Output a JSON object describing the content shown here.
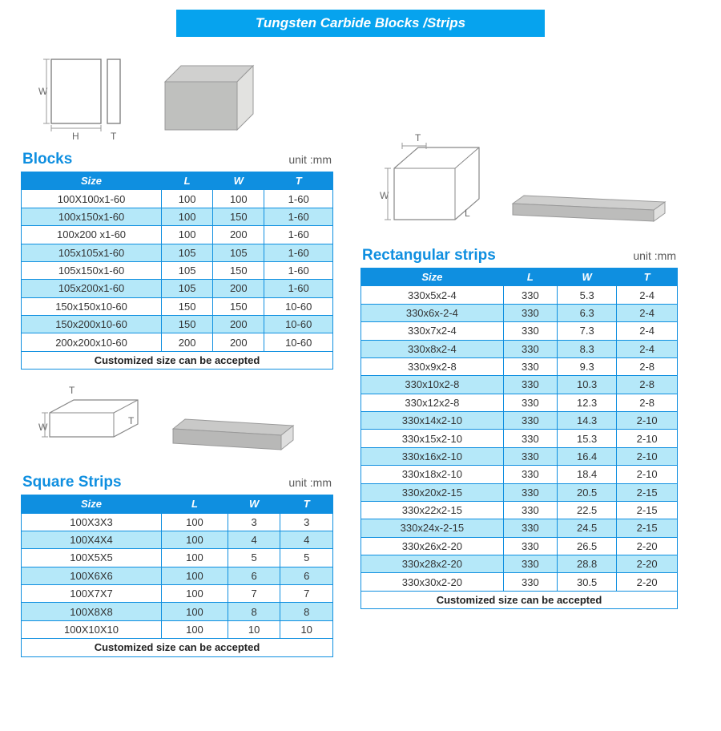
{
  "colors": {
    "brand_blue": "#06a3ee",
    "header_blue": "#0f8fe0",
    "row_alt": "#b5e8f9",
    "border": "#0f8fe0",
    "text_muted": "#5a5a5a"
  },
  "title": "Tungsten Carbide Blocks /Strips",
  "unit_label": "unit :mm",
  "blocks": {
    "heading": "Blocks",
    "columns": [
      "Size",
      "L",
      "W",
      "T"
    ],
    "rows": [
      [
        "100X100x1-60",
        "100",
        "100",
        "1-60"
      ],
      [
        "100x150x1-60",
        "100",
        "150",
        "1-60"
      ],
      [
        "100x200 x1-60",
        "100",
        "200",
        "1-60"
      ],
      [
        "105x105x1-60",
        "105",
        "105",
        "1-60"
      ],
      [
        "105x150x1-60",
        "105",
        "150",
        "1-60"
      ],
      [
        "105x200x1-60",
        "105",
        "200",
        "1-60"
      ],
      [
        "150x150x10-60",
        "150",
        "150",
        "10-60"
      ],
      [
        "150x200x10-60",
        "150",
        "200",
        "10-60"
      ],
      [
        "200x200x10-60",
        "200",
        "200",
        "10-60"
      ]
    ],
    "footer": "Customized size can be accepted"
  },
  "square_strips": {
    "heading": "Square Strips",
    "columns": [
      "Size",
      "L",
      "W",
      "T"
    ],
    "rows": [
      [
        "100X3X3",
        "100",
        "3",
        "3"
      ],
      [
        "100X4X4",
        "100",
        "4",
        "4"
      ],
      [
        "100X5X5",
        "100",
        "5",
        "5"
      ],
      [
        "100X6X6",
        "100",
        "6",
        "6"
      ],
      [
        "100X7X7",
        "100",
        "7",
        "7"
      ],
      [
        "100X8X8",
        "100",
        "8",
        "8"
      ],
      [
        "100X10X10",
        "100",
        "10",
        "10"
      ]
    ],
    "footer": "Customized size can be accepted"
  },
  "rect_strips": {
    "heading": "Rectangular strips",
    "columns": [
      "Size",
      "L",
      "W",
      "T"
    ],
    "rows": [
      [
        "330x5x2-4",
        "330",
        "5.3",
        "2-4"
      ],
      [
        "330x6x-2-4",
        "330",
        "6.3",
        "2-4"
      ],
      [
        "330x7x2-4",
        "330",
        "7.3",
        "2-4"
      ],
      [
        "330x8x2-4",
        "330",
        "8.3",
        "2-4"
      ],
      [
        "330x9x2-8",
        "330",
        "9.3",
        "2-8"
      ],
      [
        "330x10x2-8",
        "330",
        "10.3",
        "2-8"
      ],
      [
        "330x12x2-8",
        "330",
        "12.3",
        "2-8"
      ],
      [
        "330x14x2-10",
        "330",
        "14.3",
        "2-10"
      ],
      [
        "330x15x2-10",
        "330",
        "15.3",
        "2-10"
      ],
      [
        "330x16x2-10",
        "330",
        "16.4",
        "2-10"
      ],
      [
        "330x18x2-10",
        "330",
        "18.4",
        "2-10"
      ],
      [
        "330x20x2-15",
        "330",
        "20.5",
        "2-15"
      ],
      [
        "330x22x2-15",
        "330",
        "22.5",
        "2-15"
      ],
      [
        "330x24x-2-15",
        "330",
        "24.5",
        "2-15"
      ],
      [
        "330x26x2-20",
        "330",
        "26.5",
        "2-20"
      ],
      [
        "330x28x2-20",
        "330",
        "28.8",
        "2-20"
      ],
      [
        "330x30x2-20",
        "330",
        "30.5",
        "2-20"
      ]
    ],
    "footer": "Customized size can be accepted"
  },
  "diagram_labels": {
    "W": "W",
    "H": "H",
    "T": "T",
    "L": "L"
  }
}
